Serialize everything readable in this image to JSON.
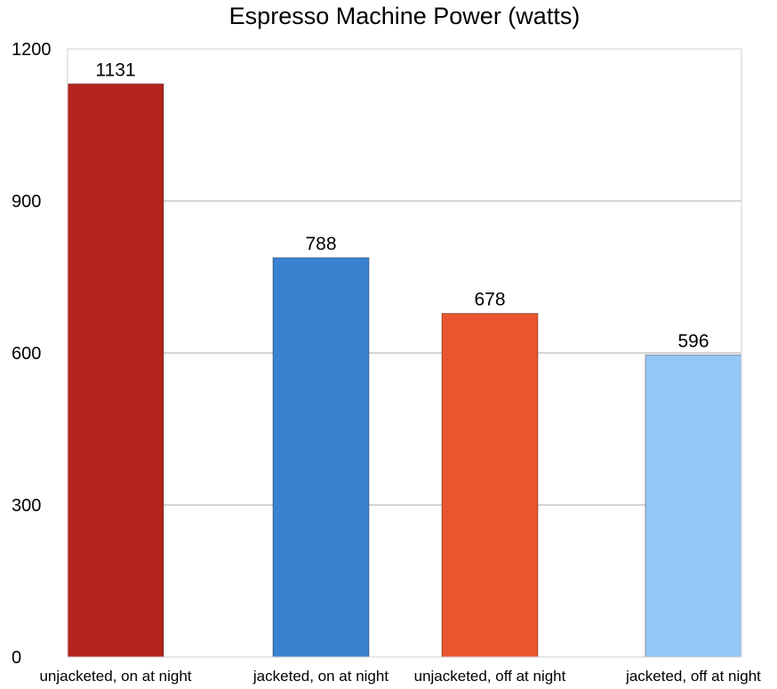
{
  "chart_data": {
    "type": "bar",
    "title": "Espresso Machine Power (watts)",
    "xlabel": "",
    "ylabel": "",
    "categories": [
      "unjacketed, on at night",
      "jacketed, on at night",
      "unjacketed, off at night",
      "jacketed, off at night"
    ],
    "values": [
      1131,
      788,
      678,
      596
    ],
    "data_labels": [
      "1131",
      "788",
      "678",
      "596"
    ],
    "colors": [
      "#b5241f",
      "#3a82cf",
      "#ea552f",
      "#95c7f6"
    ],
    "ylim": [
      0,
      1200
    ],
    "yticks": [
      0,
      300,
      600,
      900,
      1200
    ],
    "ytick_labels": [
      "0",
      "300",
      "600",
      "900",
      "1200"
    ],
    "grid": true,
    "legend": "none"
  }
}
